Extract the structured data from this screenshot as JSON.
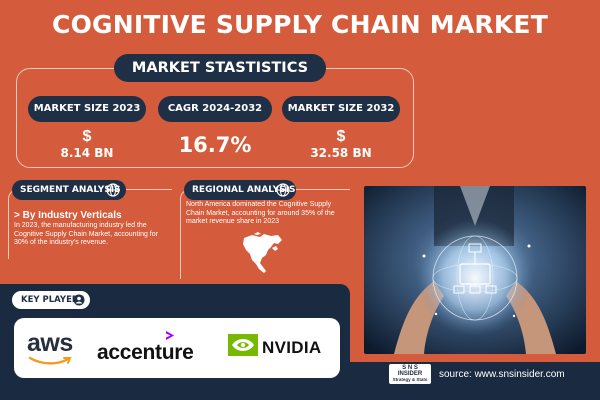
{
  "title": "COGNITIVE SUPPLY CHAIN MARKET",
  "market_stats": {
    "heading": "MARKET STASTISTICS",
    "items": [
      {
        "label": "MARKET SIZE 2023",
        "currency": "$",
        "value": "8.14 BN"
      },
      {
        "label": "CAGR 2024-2032",
        "value": "16.7%"
      },
      {
        "label": "MARKET SIZE 2032",
        "currency": "$",
        "value": "32.58 BN"
      }
    ]
  },
  "segment_analysis": {
    "heading": "SEGMENT ANALYSIS",
    "subheading": "> By Industry Verticals",
    "text": "In 2023, the manufacturing industry led the Cognitive Supply Chain Market, accounting for 30% of the industry's revenue."
  },
  "regional_analysis": {
    "heading": "REGIONAL ANALYSIS",
    "text": "North America dominated the Cognitive Supply Chain Market, accounting for around 35% of the market revenue share in 2023",
    "map_icon": "north-america-map-icon"
  },
  "key_players": {
    "heading": "KEY PLAYERS",
    "logos": [
      "aws",
      "accenture",
      "NVIDIA"
    ]
  },
  "source": {
    "text": "source: www.snsinsider.com",
    "logo_line1": "S N S",
    "logo_line2": "INSIDER",
    "logo_line3": "Strategy & Stats"
  },
  "colors": {
    "background": "#d45c3c",
    "navy": "#1e2f46",
    "white": "#ffffff"
  }
}
